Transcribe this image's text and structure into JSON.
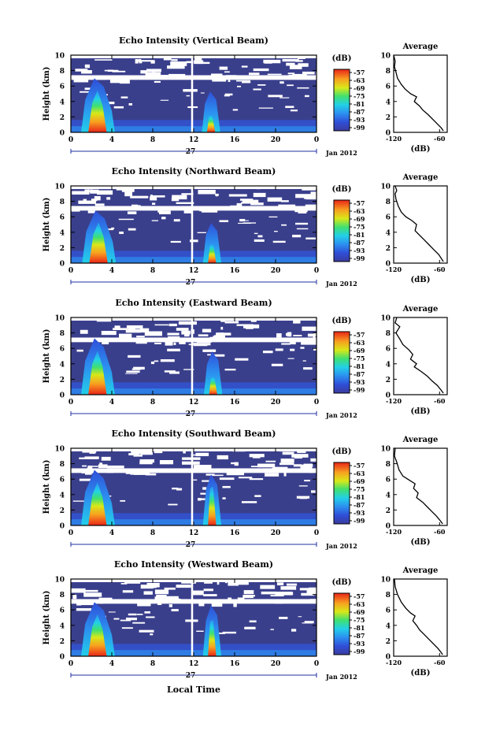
{
  "figure": {
    "xlabel": "Local Time",
    "date_label": "Jan 2012",
    "day_label": "27",
    "unit_label": "(dB)",
    "profile_title": "Average",
    "profile_xlabel": "(dB)"
  },
  "chart_data": [
    {
      "type": "heatmap",
      "title": "Echo Intensity (Vertical Beam)",
      "ylabel": "Height (km)",
      "xlim": [
        0,
        24
      ],
      "ylim": [
        0,
        10
      ],
      "xticks": [
        "0",
        "4",
        "8",
        "12",
        "16",
        "20",
        "0"
      ],
      "yticks": [
        "0",
        "2",
        "4",
        "6",
        "8",
        "10"
      ],
      "colorbar": {
        "label": "(dB)",
        "ticks": [
          "-57",
          "-63",
          "-69",
          "-75",
          "-81",
          "-87",
          "-93",
          "-99"
        ]
      },
      "main_echo": {
        "x_center": 2.6,
        "top_km": 7.0,
        "core_top_km": 2.8
      },
      "second_echo": {
        "x_center": 13.7,
        "top_km": 5.3,
        "core_top_km": 2.2
      },
      "profile": {
        "xlim": [
          -120,
          -50
        ],
        "xticks": [
          "-120",
          "-60"
        ],
        "points": [
          [
            -120,
            10
          ],
          [
            -118,
            9.2
          ],
          [
            -119,
            8.5
          ],
          [
            -117,
            7.8
          ],
          [
            -115,
            7.0
          ],
          [
            -110,
            6.2
          ],
          [
            -105,
            5.6
          ],
          [
            -98,
            5.0
          ],
          [
            -90,
            4.6
          ],
          [
            -93,
            4.0
          ],
          [
            -86,
            3.4
          ],
          [
            -82,
            2.9
          ],
          [
            -75,
            2.3
          ],
          [
            -68,
            1.6
          ],
          [
            -62,
            1.0
          ],
          [
            -58,
            0.6
          ],
          [
            -55,
            0.2
          ]
        ]
      }
    },
    {
      "type": "heatmap",
      "title": "Echo Intensity (Northward Beam)",
      "ylabel": "Height (km)",
      "xlim": [
        0,
        24
      ],
      "ylim": [
        0,
        10
      ],
      "xticks": [
        "0",
        "4",
        "8",
        "12",
        "16",
        "20",
        "0"
      ],
      "yticks": [
        "0",
        "2",
        "4",
        "6",
        "8",
        "10"
      ],
      "colorbar": {
        "label": "(dB)",
        "ticks": [
          "-57",
          "-63",
          "-69",
          "-75",
          "-81",
          "-87",
          "-93",
          "-99"
        ]
      },
      "main_echo": {
        "x_center": 2.7,
        "top_km": 6.8,
        "core_top_km": 2.6
      },
      "second_echo": {
        "x_center": 13.8,
        "top_km": 5.2,
        "core_top_km": 2.4
      },
      "profile": {
        "xlim": [
          -120,
          -50
        ],
        "xticks": [
          "-120",
          "-60"
        ],
        "points": [
          [
            -118,
            10
          ],
          [
            -116,
            9.4
          ],
          [
            -118,
            9.0
          ],
          [
            -117,
            8.3
          ],
          [
            -114,
            7.4
          ],
          [
            -110,
            6.6
          ],
          [
            -104,
            6.0
          ],
          [
            -96,
            5.5
          ],
          [
            -90,
            5.0
          ],
          [
            -92,
            4.2
          ],
          [
            -86,
            3.6
          ],
          [
            -80,
            3.0
          ],
          [
            -74,
            2.4
          ],
          [
            -68,
            1.8
          ],
          [
            -61,
            1.1
          ],
          [
            -57,
            0.5
          ],
          [
            -55,
            0.2
          ]
        ]
      }
    },
    {
      "type": "heatmap",
      "title": "Echo Intensity (Eastward Beam)",
      "ylabel": "Height (km)",
      "xlim": [
        0,
        24
      ],
      "ylim": [
        0,
        10
      ],
      "xticks": [
        "0",
        "4",
        "8",
        "12",
        "16",
        "20",
        "0"
      ],
      "yticks": [
        "0",
        "2",
        "4",
        "6",
        "8",
        "10"
      ],
      "colorbar": {
        "label": "(dB)",
        "ticks": [
          "-57",
          "-63",
          "-69",
          "-75",
          "-81",
          "-87",
          "-93",
          "-99"
        ]
      },
      "main_echo": {
        "x_center": 2.6,
        "top_km": 7.3,
        "core_top_km": 2.7
      },
      "second_echo": {
        "x_center": 13.9,
        "top_km": 5.6,
        "core_top_km": 2.3
      },
      "profile": {
        "xlim": [
          -120,
          -50
        ],
        "xticks": [
          "-120",
          "-60"
        ],
        "points": [
          [
            -116,
            10
          ],
          [
            -118,
            9.3
          ],
          [
            -112,
            8.8
          ],
          [
            -117,
            8.0
          ],
          [
            -112,
            7.2
          ],
          [
            -108,
            6.5
          ],
          [
            -100,
            5.8
          ],
          [
            -95,
            5.2
          ],
          [
            -98,
            4.6
          ],
          [
            -90,
            4.0
          ],
          [
            -93,
            3.6
          ],
          [
            -84,
            3.0
          ],
          [
            -76,
            2.4
          ],
          [
            -70,
            1.8
          ],
          [
            -63,
            1.2
          ],
          [
            -58,
            0.6
          ],
          [
            -55,
            0.2
          ]
        ]
      }
    },
    {
      "type": "heatmap",
      "title": "Echo Intensity (Southward Beam)",
      "ylabel": "Height (km)",
      "xlim": [
        0,
        24
      ],
      "ylim": [
        0,
        10
      ],
      "xticks": [
        "0",
        "4",
        "8",
        "12",
        "16",
        "20",
        "0"
      ],
      "yticks": [
        "0",
        "2",
        "4",
        "6",
        "8",
        "10"
      ],
      "colorbar": {
        "label": "(dB)",
        "ticks": [
          "-57",
          "-63",
          "-69",
          "-75",
          "-81",
          "-87",
          "-93",
          "-99"
        ]
      },
      "main_echo": {
        "x_center": 2.6,
        "top_km": 7.2,
        "core_top_km": 2.9
      },
      "second_echo": {
        "x_center": 13.8,
        "top_km": 6.6,
        "core_top_km": 4.8
      },
      "profile": {
        "xlim": [
          -120,
          -50
        ],
        "xticks": [
          "-120",
          "-60"
        ],
        "points": [
          [
            -118,
            10
          ],
          [
            -119,
            9.0
          ],
          [
            -116,
            8.2
          ],
          [
            -113,
            7.2
          ],
          [
            -108,
            6.4
          ],
          [
            -100,
            5.9
          ],
          [
            -92,
            5.4
          ],
          [
            -94,
            4.8
          ],
          [
            -88,
            4.2
          ],
          [
            -90,
            3.6
          ],
          [
            -82,
            3.0
          ],
          [
            -76,
            2.4
          ],
          [
            -70,
            1.8
          ],
          [
            -64,
            1.2
          ],
          [
            -59,
            0.6
          ],
          [
            -56,
            0.2
          ]
        ]
      }
    },
    {
      "type": "heatmap",
      "title": "Echo Intensity (Westward Beam)",
      "ylabel": "Height (km)",
      "xlim": [
        0,
        24
      ],
      "ylim": [
        0,
        10
      ],
      "xticks": [
        "0",
        "4",
        "8",
        "12",
        "16",
        "20",
        "0"
      ],
      "yticks": [
        "0",
        "2",
        "4",
        "6",
        "8",
        "10"
      ],
      "colorbar": {
        "label": "(dB)",
        "ticks": [
          "-57",
          "-63",
          "-69",
          "-75",
          "-81",
          "-87",
          "-93",
          "-99"
        ]
      },
      "main_echo": {
        "x_center": 2.6,
        "top_km": 7.0,
        "core_top_km": 2.4
      },
      "second_echo": {
        "x_center": 13.8,
        "top_km": 6.6,
        "core_top_km": 4.5
      },
      "profile": {
        "xlim": [
          -120,
          -50
        ],
        "xticks": [
          "-120",
          "-60"
        ],
        "points": [
          [
            -119,
            10
          ],
          [
            -118,
            9.0
          ],
          [
            -115,
            8.0
          ],
          [
            -110,
            7.0
          ],
          [
            -104,
            6.2
          ],
          [
            -98,
            5.6
          ],
          [
            -92,
            5.2
          ],
          [
            -95,
            4.6
          ],
          [
            -90,
            4.0
          ],
          [
            -86,
            3.4
          ],
          [
            -80,
            2.8
          ],
          [
            -74,
            2.2
          ],
          [
            -68,
            1.6
          ],
          [
            -62,
            1.0
          ],
          [
            -58,
            0.5
          ],
          [
            -56,
            0.2
          ]
        ]
      }
    }
  ]
}
